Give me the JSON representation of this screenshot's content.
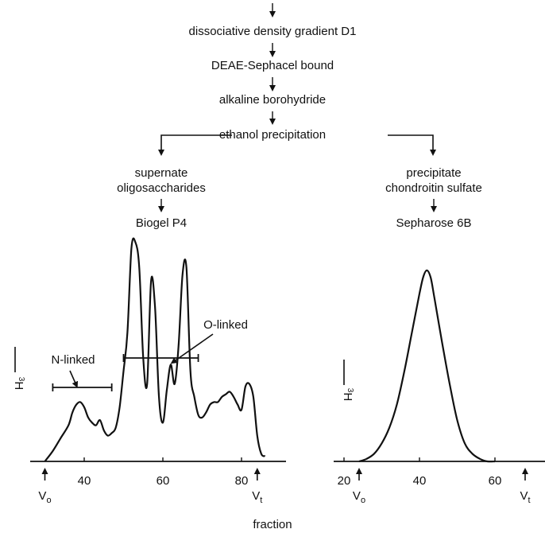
{
  "flow": {
    "steps": [
      "dissociative density gradient D1",
      "DEAE-Sephacel bound",
      "alkaline borohydride",
      "ethanol precipitation"
    ],
    "left_branch": [
      "supernate",
      "oligosaccharides",
      "Biogel P4"
    ],
    "right_branch": [
      "precipitate",
      "chondroitin sulfate",
      "Sepharose 6B"
    ]
  },
  "annotations": {
    "n_linked": "N-linked",
    "o_linked": "O-linked"
  },
  "x_axis_label": "fraction",
  "chart_data": [
    {
      "type": "line",
      "title": "Biogel P4",
      "ylabel": "3H",
      "xlim": [
        30,
        90
      ],
      "xticks": [
        40,
        60,
        80
      ],
      "markers": [
        {
          "label": "V",
          "sub": "o",
          "x": 30
        },
        {
          "label": "V",
          "sub": "t",
          "x": 84
        }
      ],
      "ranges": [
        {
          "label": "N-linked",
          "from": 32,
          "to": 47
        },
        {
          "label": "O-linked",
          "from": 50,
          "to": 69
        }
      ],
      "x": [
        30,
        32,
        34,
        36,
        37,
        38,
        39,
        40,
        41,
        42,
        43,
        44,
        45,
        46,
        47,
        48,
        49,
        50,
        51,
        52,
        53,
        54,
        55,
        56,
        57,
        58,
        59,
        60,
        61,
        62,
        63,
        64,
        65,
        66,
        67,
        68,
        69,
        70,
        71,
        72,
        73,
        74,
        75,
        76,
        77,
        78,
        79,
        80,
        81,
        82,
        83,
        84,
        85,
        86
      ],
      "y": [
        0,
        8,
        18,
        28,
        38,
        44,
        46,
        42,
        34,
        30,
        28,
        32,
        24,
        20,
        22,
        26,
        42,
        70,
        100,
        165,
        170,
        150,
        80,
        60,
        140,
        120,
        50,
        30,
        55,
        75,
        60,
        90,
        145,
        150,
        70,
        50,
        36,
        34,
        38,
        44,
        46,
        46,
        50,
        52,
        54,
        50,
        44,
        40,
        58,
        60,
        50,
        20,
        6,
        4
      ],
      "ylim": [
        0,
        180
      ]
    },
    {
      "type": "line",
      "title": "Sepharose 6B",
      "ylabel": "3H",
      "xlim": [
        15,
        70
      ],
      "xticks": [
        20,
        40,
        60
      ],
      "markers": [
        {
          "label": "V",
          "sub": "o",
          "x": 24
        },
        {
          "label": "V",
          "sub": "t",
          "x": 68
        }
      ],
      "x": [
        24,
        26,
        28,
        30,
        32,
        34,
        36,
        38,
        40,
        41,
        42,
        43,
        44,
        46,
        48,
        50,
        52,
        54,
        56,
        58,
        60
      ],
      "y": [
        0,
        2,
        6,
        14,
        26,
        44,
        70,
        100,
        130,
        143,
        148,
        142,
        126,
        92,
        60,
        32,
        14,
        6,
        2,
        0,
        0
      ],
      "ylim": [
        0,
        180
      ]
    }
  ]
}
